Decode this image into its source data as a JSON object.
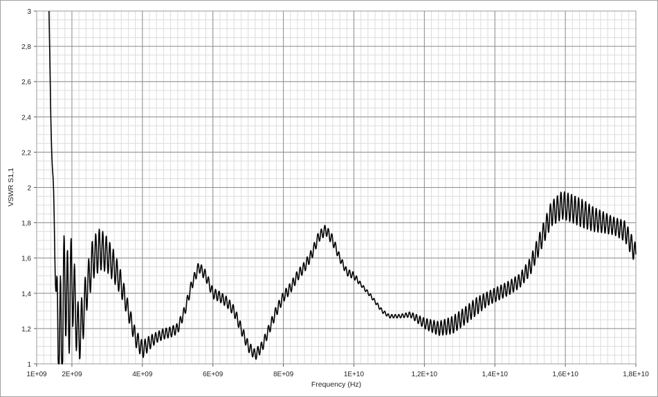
{
  "chart_data": {
    "type": "line",
    "xlabel": "Frequency (Hz)",
    "ylabel": "VSWR S1,1",
    "xlim": [
      1000000000,
      18000000000
    ],
    "ylim": [
      1,
      3
    ],
    "x_tick_values": [
      1000000000,
      2000000000,
      4000000000,
      6000000000,
      8000000000,
      10000000000,
      12000000000,
      14000000000,
      16000000000,
      18000000000
    ],
    "x_tick_labels": [
      "1E+09",
      "2E+09",
      "4E+09",
      "6E+09",
      "8E+09",
      "1E+10",
      "1,2E+10",
      "1,4E+10",
      "1,6E+10",
      "1,8E+10"
    ],
    "y_tick_values": [
      1,
      1.2,
      1.4,
      1.6,
      1.8,
      2,
      2.2,
      2.4,
      2.6,
      2.8,
      3
    ],
    "y_tick_labels": [
      "1",
      "1,2",
      "1,4",
      "1,6",
      "1,8",
      "2",
      "2,2",
      "2,4",
      "2,6",
      "2,8",
      "3"
    ],
    "grid": true,
    "line_color": "#000000",
    "series": [
      {
        "x": [
          1350000000,
          1400000000,
          1450000000,
          1500000000,
          1550000000,
          1600000000,
          1700000000,
          1800000000,
          1900000000,
          2000000000,
          2100000000,
          2200000000,
          2300000000,
          2400000000,
          2500000000,
          2600000000,
          2800000000,
          3000000000,
          3200000000,
          3400000000,
          3600000000,
          3800000000,
          4000000000,
          4200000000,
          4400000000,
          4600000000,
          4800000000,
          5000000000,
          5200000000,
          5400000000,
          5600000000,
          5800000000,
          6000000000,
          6200000000,
          6400000000,
          6600000000,
          6800000000,
          7000000000,
          7200000000,
          7400000000,
          7600000000,
          7800000000,
          8000000000,
          8200000000,
          8400000000,
          8600000000,
          8800000000,
          9000000000,
          9200000000,
          9400000000,
          9600000000,
          9800000000,
          10000000000,
          10200000000,
          10500000000,
          10800000000,
          11000000000,
          11300000000,
          11600000000,
          12000000000,
          12400000000,
          12800000000,
          13200000000,
          13500000000,
          13800000000,
          14100000000,
          14400000000,
          14700000000,
          15000000000,
          15300000000,
          15600000000,
          15900000000,
          16200000000,
          16500000000,
          16800000000,
          17100000000,
          17400000000,
          17700000000,
          18000000000
        ],
        "y": [
          3.0,
          2.4,
          2.1,
          1.8,
          1.4,
          1.2,
          1.1,
          1.5,
          1.3,
          1.5,
          1.3,
          1.15,
          1.25,
          1.4,
          1.5,
          1.6,
          1.65,
          1.62,
          1.55,
          1.45,
          1.3,
          1.15,
          1.08,
          1.12,
          1.15,
          1.17,
          1.18,
          1.2,
          1.3,
          1.45,
          1.55,
          1.5,
          1.4,
          1.38,
          1.35,
          1.3,
          1.2,
          1.1,
          1.05,
          1.1,
          1.2,
          1.3,
          1.38,
          1.43,
          1.5,
          1.55,
          1.62,
          1.72,
          1.76,
          1.7,
          1.6,
          1.52,
          1.5,
          1.45,
          1.38,
          1.3,
          1.27,
          1.27,
          1.28,
          1.23,
          1.2,
          1.22,
          1.28,
          1.33,
          1.37,
          1.4,
          1.43,
          1.47,
          1.55,
          1.7,
          1.85,
          1.9,
          1.88,
          1.85,
          1.82,
          1.8,
          1.78,
          1.75,
          1.62
        ],
        "ripple": [
          0.0,
          0.02,
          0.05,
          0.08,
          0.1,
          0.3,
          0.4,
          0.3,
          0.3,
          0.25,
          0.2,
          0.15,
          0.15,
          0.12,
          0.12,
          0.12,
          0.12,
          0.1,
          0.09,
          0.07,
          0.05,
          0.05,
          0.05,
          0.04,
          0.03,
          0.03,
          0.03,
          0.03,
          0.03,
          0.03,
          0.03,
          0.03,
          0.03,
          0.03,
          0.03,
          0.03,
          0.03,
          0.03,
          0.03,
          0.03,
          0.03,
          0.03,
          0.03,
          0.03,
          0.03,
          0.03,
          0.03,
          0.03,
          0.03,
          0.03,
          0.02,
          0.02,
          0.02,
          0.01,
          0.01,
          0.01,
          0.01,
          0.01,
          0.015,
          0.03,
          0.04,
          0.05,
          0.05,
          0.05,
          0.04,
          0.04,
          0.04,
          0.04,
          0.05,
          0.06,
          0.07,
          0.08,
          0.08,
          0.08,
          0.07,
          0.06,
          0.05,
          0.06,
          0.06
        ]
      }
    ]
  }
}
